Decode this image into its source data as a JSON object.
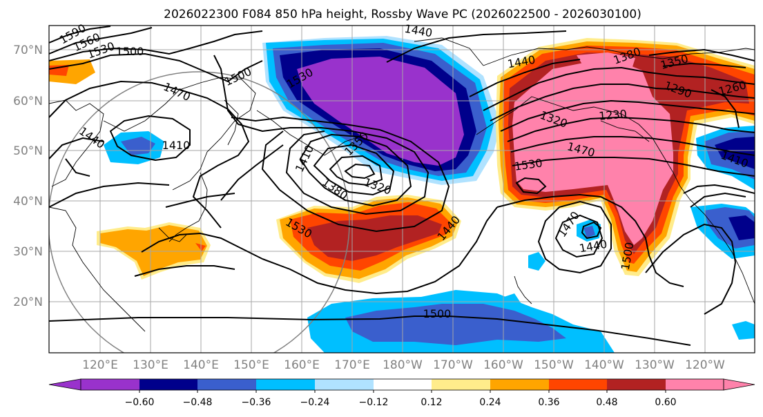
{
  "title": "2026022300 F084 850 hPa height, Rossby Wave PC (2026022500 - 2026030100)",
  "map": {
    "lon_labels": [
      "120°E",
      "130°E",
      "140°E",
      "150°E",
      "160°E",
      "170°E",
      "180°W",
      "170°W",
      "160°W",
      "150°W",
      "140°W",
      "130°W",
      "120°W"
    ],
    "lat_labels": [
      "70°N",
      "60°N",
      "50°N",
      "40°N",
      "30°N",
      "20°N"
    ],
    "contour_labels": [
      "1590",
      "1560",
      "1530",
      "1500",
      "1440",
      "1470",
      "1440",
      "1410",
      "1500",
      "1530",
      "1410",
      "1350",
      "1380",
      "1320",
      "1530",
      "1440",
      "1500",
      "1440",
      "1380",
      "1350",
      "1290",
      "1260",
      "1230",
      "1320",
      "1470",
      "1530",
      "1470",
      "1440",
      "1500",
      "1410"
    ],
    "colors": {
      "purple": "#9932cc",
      "navy": "#00008b",
      "royal": "#3a5fcd",
      "deepsky": "#00bfff",
      "lightblue": "#b0e2ff",
      "white": "#ffffff",
      "yellow": "#ffec8b",
      "orange": "#ffa500",
      "orangered": "#ff4500",
      "firebrick": "#b22222",
      "pink": "#ff82ab"
    }
  },
  "colorbar": {
    "tick_labels": [
      "−0.60",
      "−0.48",
      "−0.36",
      "−0.24",
      "−0.12",
      "0.12",
      "0.24",
      "0.36",
      "0.48",
      "0.60"
    ],
    "colors": [
      "#9932cc",
      "#00008b",
      "#3a5fcd",
      "#00bfff",
      "#b0e2ff",
      "#ffffff",
      "#ffec8b",
      "#ffa500",
      "#ff4500",
      "#b22222",
      "#ff82ab"
    ]
  }
}
